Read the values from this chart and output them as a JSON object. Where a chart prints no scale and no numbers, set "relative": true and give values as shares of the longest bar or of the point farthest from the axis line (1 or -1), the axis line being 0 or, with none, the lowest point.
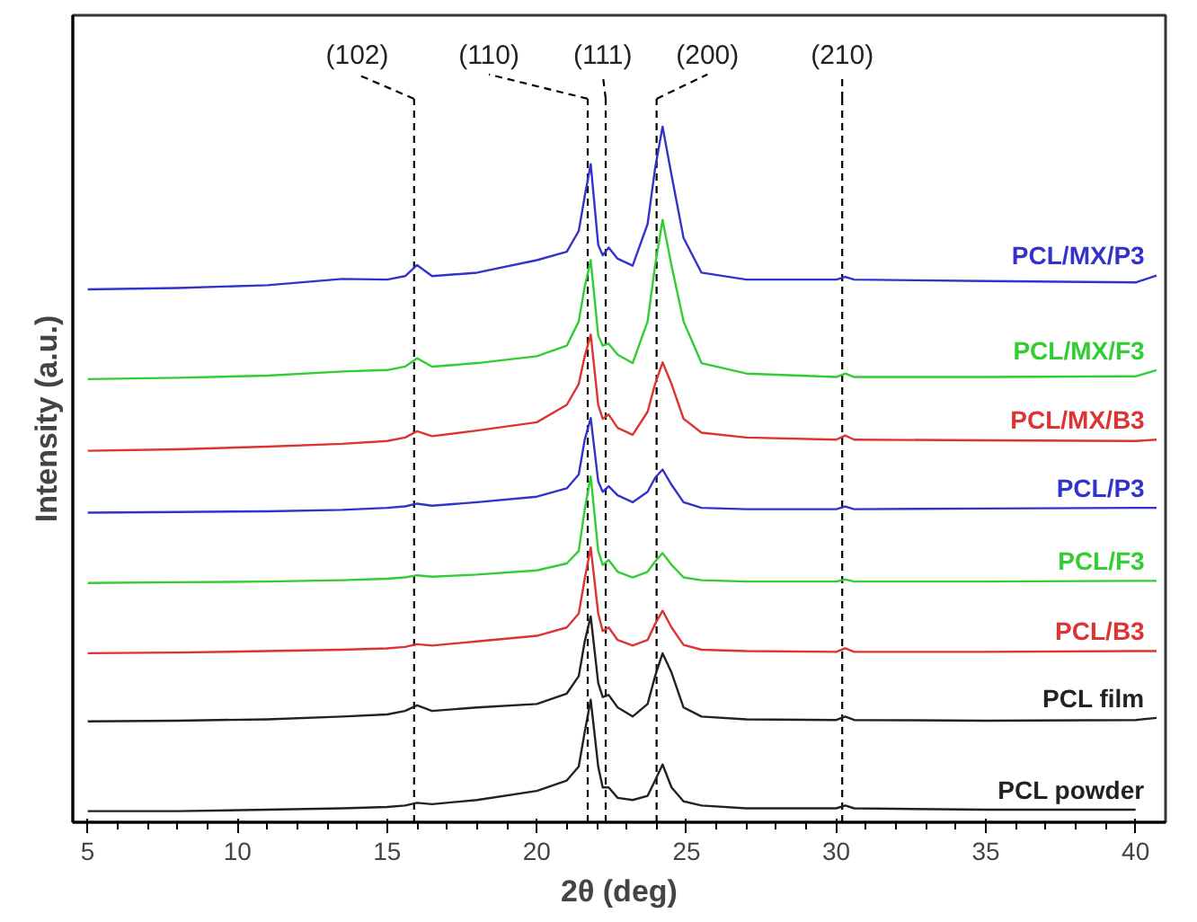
{
  "chart_data": {
    "type": "line",
    "relative": true,
    "xlabel": "2θ (deg)",
    "ylabel": "Intensity (a.u.)",
    "x": [
      5,
      8,
      11,
      13.5,
      15,
      15.6,
      16,
      16.5,
      18,
      20,
      21,
      21.4,
      21.6,
      21.8,
      22.05,
      22.2,
      22.4,
      22.7,
      23.2,
      23.7,
      23.95,
      24.2,
      24.5,
      24.9,
      25.5,
      27,
      30,
      30.3,
      30.6,
      35,
      40,
      40.7
    ],
    "xlim": [
      4.5,
      41
    ],
    "xticks": [
      5,
      10,
      15,
      20,
      25,
      30,
      35,
      40
    ],
    "grid": false,
    "marker": "none",
    "line_style": "solid",
    "series": [
      {
        "name": "PCL powder",
        "color": "#222222",
        "values": [
          0.016,
          0.016,
          0.018,
          0.02,
          0.022,
          0.024,
          0.028,
          0.026,
          0.032,
          0.045,
          0.06,
          0.08,
          0.13,
          0.176,
          0.08,
          0.05,
          0.05,
          0.035,
          0.032,
          0.038,
          0.06,
          0.083,
          0.05,
          0.03,
          0.024,
          0.02,
          0.02,
          0.024,
          0.02,
          0.018,
          0.018,
          null
        ]
      },
      {
        "name": "PCL film",
        "color": "#222222",
        "values": [
          0.145,
          0.146,
          0.148,
          0.152,
          0.155,
          0.16,
          0.168,
          0.16,
          0.165,
          0.17,
          0.185,
          0.21,
          0.26,
          0.296,
          0.2,
          0.18,
          0.183,
          0.165,
          0.152,
          0.17,
          0.21,
          0.243,
          0.215,
          0.165,
          0.152,
          0.148,
          0.147,
          0.152,
          0.147,
          0.146,
          0.147,
          0.15
        ]
      },
      {
        "name": "PCL/B3",
        "color": "#dd3333",
        "values": [
          0.243,
          0.244,
          0.246,
          0.248,
          0.25,
          0.252,
          0.256,
          0.254,
          0.26,
          0.268,
          0.28,
          0.3,
          0.35,
          0.395,
          0.3,
          0.275,
          0.28,
          0.262,
          0.254,
          0.262,
          0.285,
          0.304,
          0.28,
          0.255,
          0.248,
          0.246,
          0.245,
          0.25,
          0.245,
          0.245,
          0.246,
          0.246
        ]
      },
      {
        "name": "PCL/F3",
        "color": "#33cc33",
        "values": [
          0.344,
          0.345,
          0.346,
          0.348,
          0.35,
          0.352,
          0.355,
          0.353,
          0.356,
          0.362,
          0.372,
          0.39,
          0.45,
          0.497,
          0.39,
          0.37,
          0.377,
          0.36,
          0.352,
          0.36,
          0.375,
          0.387,
          0.37,
          0.352,
          0.348,
          0.346,
          0.346,
          0.349,
          0.346,
          0.346,
          0.347,
          0.347
        ]
      },
      {
        "name": "PCL/P3",
        "color": "#3333cc",
        "values": [
          0.445,
          0.446,
          0.447,
          0.449,
          0.452,
          0.454,
          0.458,
          0.455,
          0.46,
          0.468,
          0.48,
          0.5,
          0.55,
          0.581,
          0.49,
          0.475,
          0.483,
          0.47,
          0.46,
          0.475,
          0.495,
          0.507,
          0.485,
          0.46,
          0.452,
          0.45,
          0.45,
          0.454,
          0.45,
          0.451,
          0.452,
          0.452
        ]
      },
      {
        "name": "PCL/MX/B3",
        "color": "#dd3333",
        "values": [
          0.534,
          0.536,
          0.54,
          0.544,
          0.548,
          0.553,
          0.562,
          0.555,
          0.563,
          0.575,
          0.6,
          0.63,
          0.67,
          0.701,
          0.6,
          0.58,
          0.586,
          0.567,
          0.557,
          0.59,
          0.63,
          0.661,
          0.63,
          0.58,
          0.56,
          0.553,
          0.55,
          0.556,
          0.55,
          0.549,
          0.548,
          0.55
        ]
      },
      {
        "name": "PCL/MX/F3",
        "color": "#33cc33",
        "values": [
          0.637,
          0.639,
          0.642,
          0.648,
          0.65,
          0.655,
          0.667,
          0.655,
          0.66,
          0.67,
          0.685,
          0.72,
          0.77,
          0.808,
          0.7,
          0.685,
          0.688,
          0.672,
          0.66,
          0.72,
          0.8,
          0.866,
          0.8,
          0.72,
          0.66,
          0.645,
          0.64,
          0.645,
          0.64,
          0.64,
          0.641,
          0.65
        ]
      },
      {
        "name": "PCL/MX/P3",
        "color": "#3333cc",
        "values": [
          0.766,
          0.768,
          0.772,
          0.781,
          0.78,
          0.785,
          0.801,
          0.785,
          0.79,
          0.808,
          0.82,
          0.85,
          0.9,
          0.946,
          0.83,
          0.815,
          0.826,
          0.81,
          0.8,
          0.86,
          0.94,
          1,
          0.93,
          0.84,
          0.79,
          0.78,
          0.78,
          0.784,
          0.78,
          0.778,
          0.776,
          0.786
        ]
      }
    ],
    "ref_lines": [
      {
        "axis": "x",
        "value": 15.9,
        "line_style": "dashed"
      },
      {
        "axis": "x",
        "value": 21.7,
        "line_style": "dashed"
      },
      {
        "axis": "x",
        "value": 22.3,
        "line_style": "dashed"
      },
      {
        "axis": "x",
        "value": 24.0,
        "line_style": "dashed"
      },
      {
        "axis": "x",
        "value": 30.2,
        "line_style": "dashed"
      }
    ],
    "annotations": [
      {
        "text": "(102)",
        "x": 15.9
      },
      {
        "text": "(110)",
        "x": 21.7
      },
      {
        "text": "(111)",
        "x": 22.3
      },
      {
        "text": "(200)",
        "x": 24.0
      },
      {
        "text": "(210)",
        "x": 30.2
      }
    ]
  }
}
